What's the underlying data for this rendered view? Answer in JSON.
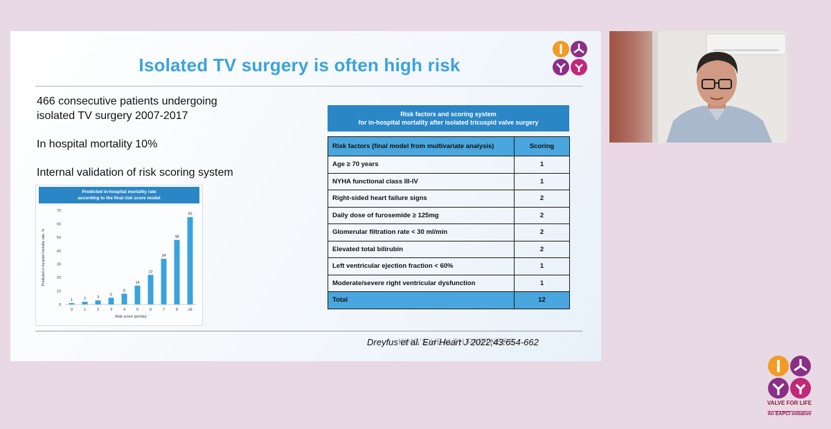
{
  "slide": {
    "title": "Isolated TV surgery is often high risk",
    "bullets": [
      "466 consecutive patients undergoing",
      "isolated TV surgery 2007-2017",
      "In hospital mortality 10%",
      "Internal validation of risk scoring system"
    ],
    "citation": "Dreyfus et al. Eur Heart J 2022;43:654-662",
    "watermark": "KING'S HEALTH PARTNERS"
  },
  "chart_data": {
    "type": "bar",
    "title": "Predicted in-hospital mortality rate according to the final risk score model",
    "title_lines": [
      "Predicted in-hospital mortality rate",
      "according to the final risk score model"
    ],
    "xlabel": "Risk score (points)",
    "ylabel": "Predicted in-hospital mortality rate, %",
    "categories": [
      "0",
      "1",
      "2",
      "3",
      "4",
      "5",
      "6",
      "7",
      "8",
      "≥9"
    ],
    "values": [
      1,
      2,
      3,
      5,
      8,
      14,
      22,
      34,
      48,
      65
    ],
    "ylim": [
      0,
      70
    ],
    "yticks": [
      0,
      10,
      20,
      30,
      40,
      50,
      60,
      70
    ],
    "bar_color": "#3aa3dc"
  },
  "table": {
    "header_lines": [
      "Risk factors  and scoring system",
      "for in-hospital mortality after isolated tricuspid valve surgery"
    ],
    "col_factor": "Risk factors (final model from multivariate analysis)",
    "col_score": "Scoring",
    "rows": [
      {
        "factor": "Age ≥ 70 years",
        "score": "1"
      },
      {
        "factor": "NYHA functional class III-IV",
        "score": "1"
      },
      {
        "factor": "Right-sided heart failure signs",
        "score": "2"
      },
      {
        "factor": "Daily dose of furosemide ≥ 125mg",
        "score": "2"
      },
      {
        "factor": "Glomerular filtration rate < 30 ml/min",
        "score": "2"
      },
      {
        "factor": "Elevated total bilirubin",
        "score": "2"
      },
      {
        "factor": "Left ventricular ejection fraction < 60%",
        "score": "1"
      },
      {
        "factor": "Moderate/severe right ventricular dysfunction",
        "score": "1"
      }
    ],
    "total_label": "Total",
    "total_score": "12"
  },
  "branding": {
    "line1": "VALVE FOR LIFE",
    "line2": "An EAPCI initiative"
  },
  "colors": {
    "background": "#e9d9e5",
    "title": "#3aa3dc",
    "table_blue": "#49a6de",
    "header_blue": "#2b86c6",
    "logo_orange": "#f29b26",
    "logo_purple": "#8a2f86",
    "logo_magenta": "#c0287a"
  }
}
